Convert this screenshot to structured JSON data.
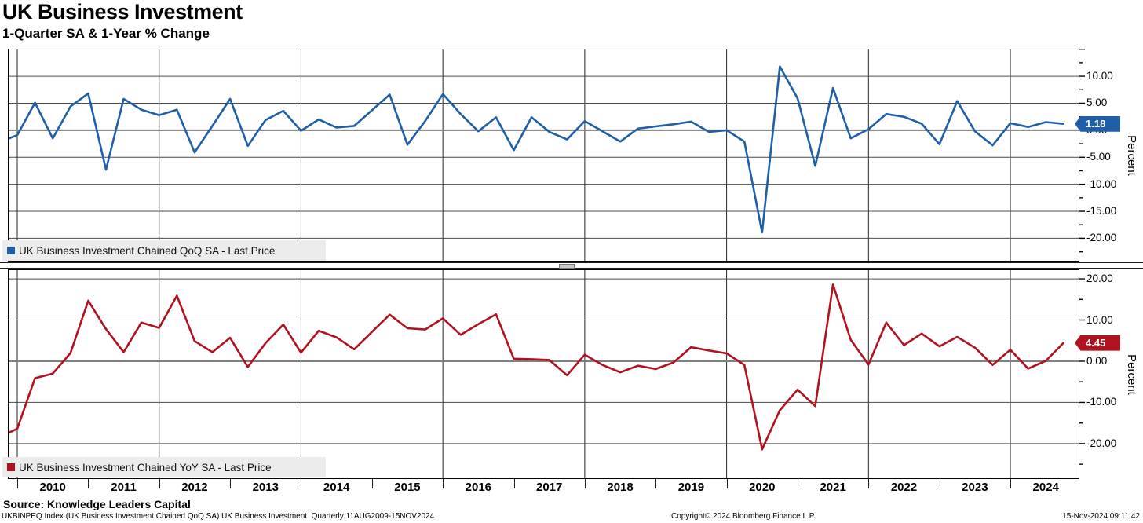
{
  "title": "UK Business Investment",
  "subtitle": "1-Quarter SA & 1-Year % Change",
  "x_axis": {
    "year_labels": [
      "2010",
      "2011",
      "2012",
      "2013",
      "2014",
      "2015",
      "2016",
      "2017",
      "2018",
      "2019",
      "2020",
      "2021",
      "2022",
      "2023",
      "2024"
    ],
    "gridline_years": [
      2010,
      2012,
      2014,
      2016,
      2018,
      2020,
      2022,
      2024
    ]
  },
  "chart_data": {
    "type": "line",
    "title": "UK Business Investment",
    "subtitle": "1-Quarter SA & 1-Year % Change",
    "x_gridline_years": [
      2010,
      2012,
      2014,
      2016,
      2018,
      2020,
      2022,
      2024
    ],
    "periods": [
      "2009 Q3",
      "2009 Q4",
      "2010 Q1",
      "2010 Q2",
      "2010 Q3",
      "2010 Q4",
      "2011 Q1",
      "2011 Q2",
      "2011 Q3",
      "2011 Q4",
      "2012 Q1",
      "2012 Q2",
      "2012 Q3",
      "2012 Q4",
      "2013 Q1",
      "2013 Q2",
      "2013 Q3",
      "2013 Q4",
      "2014 Q1",
      "2014 Q2",
      "2014 Q3",
      "2014 Q4",
      "2015 Q1",
      "2015 Q2",
      "2015 Q3",
      "2015 Q4",
      "2016 Q1",
      "2016 Q2",
      "2016 Q3",
      "2016 Q4",
      "2017 Q1",
      "2017 Q2",
      "2017 Q3",
      "2017 Q4",
      "2018 Q1",
      "2018 Q2",
      "2018 Q3",
      "2018 Q4",
      "2019 Q1",
      "2019 Q2",
      "2019 Q3",
      "2019 Q4",
      "2020 Q1",
      "2020 Q2",
      "2020 Q3",
      "2020 Q4",
      "2021 Q1",
      "2021 Q2",
      "2021 Q3",
      "2021 Q4",
      "2022 Q1",
      "2022 Q2",
      "2022 Q3",
      "2022 Q4",
      "2023 Q1",
      "2023 Q2",
      "2023 Q3",
      "2023 Q4",
      "2024 Q1",
      "2024 Q2",
      "2024 Q3"
    ],
    "panels": [
      {
        "id": "qoq",
        "legend": "UK Business Investment Chained QoQ SA - Last Price",
        "color": "#1f5fa8",
        "last_price": 1.18,
        "last_price_label": "1.18",
        "axis_title": "Percent",
        "ylim": [
          -24.3,
          15.1
        ],
        "ytick_minor": 2.5,
        "yticks": {
          "values": [
            10,
            5,
            0,
            -5,
            -10,
            -15,
            -20
          ],
          "labels": [
            "10.00",
            "5.00",
            "0.00",
            "-5.00",
            "-10.00",
            "-15.00",
            "-20.00"
          ]
        },
        "values": [
          -2.2,
          -0.9,
          5.1,
          -1.5,
          4.4,
          6.8,
          -7.3,
          5.8,
          3.8,
          2.8,
          3.8,
          -4.1,
          0.8,
          5.8,
          -2.9,
          1.9,
          3.6,
          -0.1,
          2.0,
          0.5,
          0.8,
          3.7,
          6.6,
          -2.7,
          1.7,
          6.7,
          3.0,
          -0.2,
          2.4,
          -3.7,
          2.4,
          -0.3,
          -1.7,
          1.7,
          -0.2,
          -2.1,
          0.3,
          0.7,
          1.1,
          1.6,
          -0.3,
          0.0,
          -2.1,
          -18.9,
          11.8,
          5.9,
          -6.6,
          7.8,
          -1.5,
          0.2,
          3.0,
          2.5,
          1.2,
          -2.6,
          5.4,
          -0.2,
          -2.8,
          1.3,
          0.6,
          1.5,
          1.18
        ]
      },
      {
        "id": "yoy",
        "legend": "UK Business Investment Chained YoY SA - Last Price",
        "color": "#b0121f",
        "last_price": 4.45,
        "last_price_label": "4.45",
        "axis_title": "Percent",
        "ylim": [
          -28.6,
          22.3
        ],
        "ytick_minor": 5,
        "yticks": {
          "values": [
            20,
            10,
            0,
            -10,
            -20
          ],
          "labels": [
            "20.00",
            "10.00",
            "0.00",
            "-10.00",
            "-20.00"
          ]
        },
        "values": [
          -18.4,
          -16.4,
          -4.1,
          -3.0,
          2.0,
          14.7,
          7.8,
          2.2,
          9.4,
          8.1,
          15.9,
          4.9,
          2.2,
          5.7,
          -1.4,
          4.4,
          8.9,
          2.1,
          7.4,
          5.8,
          2.9,
          7.1,
          11.3,
          8.0,
          7.7,
          10.4,
          6.4,
          9.0,
          11.4,
          0.6,
          0.5,
          0.3,
          -3.4,
          1.6,
          -0.9,
          -2.7,
          -1.1,
          -1.9,
          -0.3,
          3.4,
          2.6,
          1.9,
          -0.9,
          -21.4,
          -11.9,
          -6.9,
          -10.9,
          18.6,
          5.2,
          -0.8,
          9.4,
          3.9,
          6.7,
          3.6,
          5.9,
          3.3,
          -0.9,
          2.8,
          -1.8,
          0.1,
          4.45
        ]
      }
    ]
  },
  "footer": {
    "source": "Source: Knowledge Leaders Capital",
    "description": "UKBINPEQ Index (UK Business Investment Chained QoQ SA) UK Business Investment  Quarterly 11AUG2009-15NOV2024",
    "copyright": "Copyright© 2024 Bloomberg Finance L.P.",
    "timestamp": "15-Nov-2024 09:11:42"
  }
}
